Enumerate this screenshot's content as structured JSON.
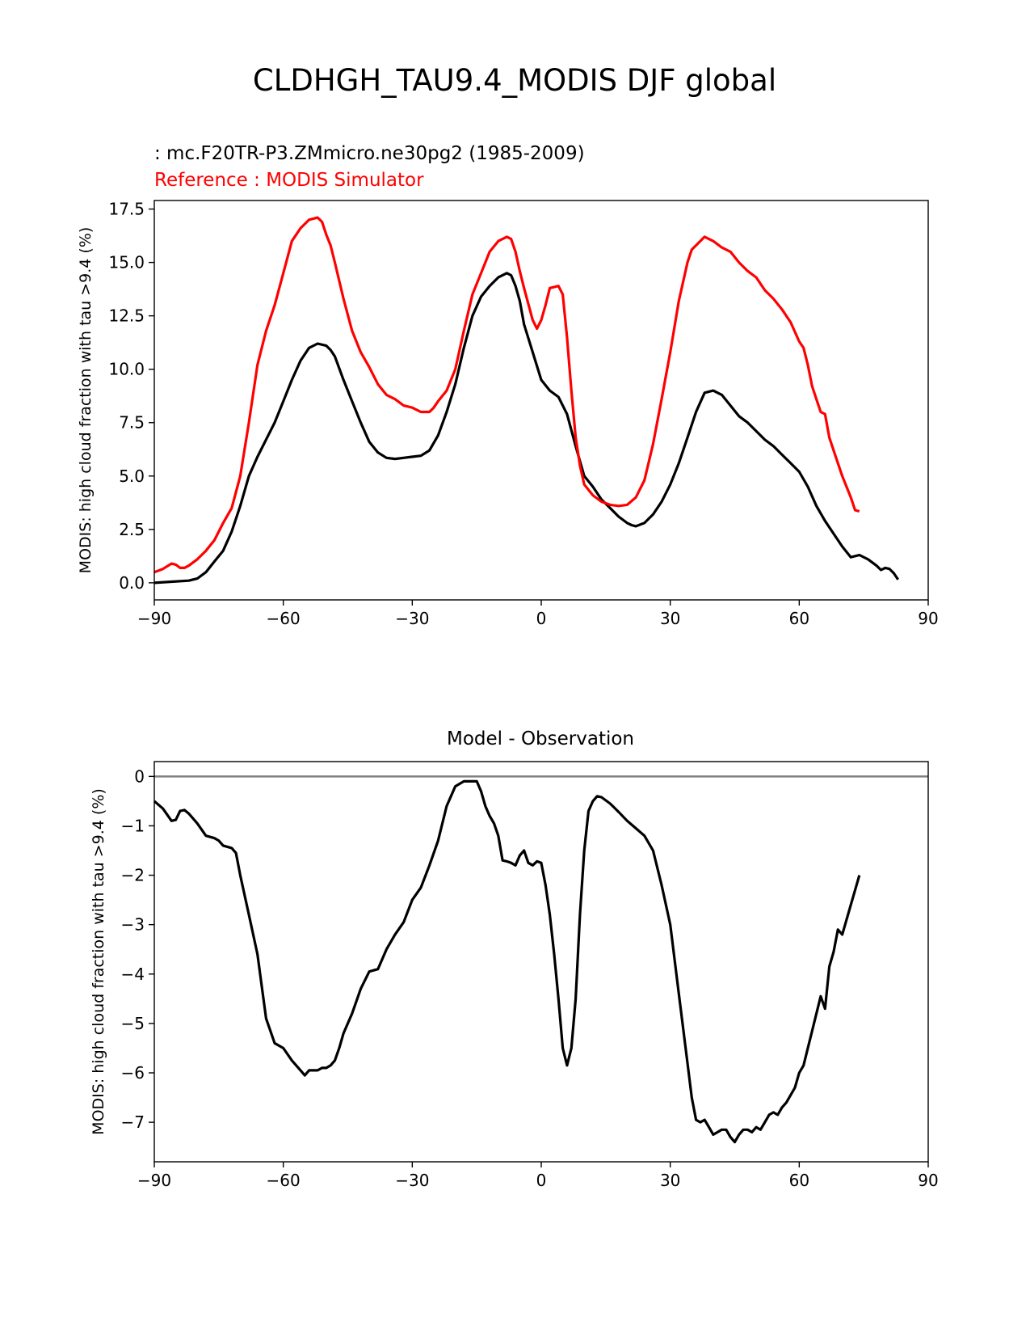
{
  "figure": {
    "title": "CLDHGH_TAU9.4_MODIS DJF global"
  },
  "chart_data": [
    {
      "type": "line",
      "test_label": " : mc.F20TR-P3.ZMmicro.ne30pg2 (1985-2009)",
      "ref_label": "Reference : MODIS Simulator",
      "ylabel": "MODIS: high cloud fraction with tau >9.4 (%)",
      "xlim": [
        -90,
        90
      ],
      "ylim": [
        -0.8,
        17.9
      ],
      "xticks": [
        -90,
        -60,
        -30,
        0,
        30,
        60,
        90
      ],
      "xtick_labels": [
        "−90",
        "−60",
        "−30",
        "0",
        "30",
        "60",
        "90"
      ],
      "yticks": [
        0,
        2.5,
        5,
        7.5,
        10,
        12.5,
        15,
        17.5
      ],
      "ytick_labels": [
        "0.0",
        "2.5",
        "5.0",
        "7.5",
        "10.0",
        "12.5",
        "15.0",
        "17.5"
      ],
      "series": [
        {
          "role": "test",
          "color": "#000000",
          "x": [
            -90,
            -86,
            -82,
            -80,
            -78,
            -76,
            -74,
            -72,
            -70,
            -68,
            -66,
            -62,
            -60,
            -58,
            -56,
            -54,
            -52,
            -50,
            -49,
            -48,
            -46,
            -44,
            -42,
            -40,
            -38,
            -36,
            -34,
            -32,
            -30,
            -28,
            -26,
            -24,
            -22,
            -20,
            -18,
            -16,
            -14,
            -12,
            -10,
            -8,
            -7,
            -6,
            -5,
            -4,
            -2,
            0,
            2,
            4,
            6,
            8,
            10,
            12,
            14,
            16,
            18,
            20,
            21,
            22,
            24,
            26,
            28,
            30,
            32,
            34,
            36,
            38,
            40,
            42,
            44,
            46,
            48,
            50,
            52,
            54,
            56,
            58,
            60,
            62,
            64,
            66,
            68,
            70,
            72,
            74,
            76,
            78,
            79,
            80,
            81,
            82,
            83
          ],
          "y": [
            0.0,
            0.05,
            0.1,
            0.2,
            0.5,
            1.0,
            1.5,
            2.4,
            3.6,
            5.0,
            5.9,
            7.5,
            8.5,
            9.5,
            10.4,
            11.0,
            11.2,
            11.1,
            10.9,
            10.6,
            9.5,
            8.5,
            7.5,
            6.6,
            6.1,
            5.85,
            5.8,
            5.85,
            5.9,
            5.95,
            6.2,
            6.9,
            8.0,
            9.3,
            11.0,
            12.5,
            13.4,
            13.9,
            14.3,
            14.5,
            14.4,
            13.9,
            13.2,
            12.1,
            10.8,
            9.5,
            9.0,
            8.7,
            7.9,
            6.4,
            5.0,
            4.5,
            3.9,
            3.5,
            3.1,
            2.8,
            2.7,
            2.65,
            2.8,
            3.2,
            3.8,
            4.6,
            5.6,
            6.8,
            8.0,
            8.9,
            9.0,
            8.8,
            8.3,
            7.8,
            7.5,
            7.1,
            6.7,
            6.4,
            6.0,
            5.6,
            5.2,
            4.5,
            3.6,
            2.9,
            2.3,
            1.7,
            1.2,
            1.3,
            1.1,
            0.8,
            0.6,
            0.7,
            0.65,
            0.45,
            0.15
          ]
        },
        {
          "role": "reference",
          "color": "#ff0000",
          "x": [
            -90,
            -88,
            -86,
            -85,
            -84,
            -83,
            -82,
            -80,
            -78,
            -76,
            -75,
            -74,
            -72,
            -70,
            -68,
            -66,
            -64,
            -62,
            -60,
            -58,
            -56,
            -54,
            -52,
            -51,
            -50,
            -49,
            -48,
            -46,
            -44,
            -42,
            -40,
            -38,
            -36,
            -34,
            -32,
            -30,
            -28,
            -26,
            -25,
            -24,
            -22,
            -20,
            -18,
            -16,
            -14,
            -12,
            -10,
            -8,
            -7,
            -6,
            -5,
            -4,
            -2,
            -1,
            0,
            1,
            2,
            4,
            5,
            6,
            7,
            8,
            9,
            10,
            12,
            14,
            16,
            18,
            20,
            22,
            24,
            26,
            28,
            30,
            32,
            34,
            35,
            36,
            38,
            40,
            42,
            44,
            46,
            48,
            50,
            52,
            54,
            56,
            58,
            60,
            61,
            62,
            63,
            64,
            65,
            66,
            67,
            68,
            69,
            70,
            71,
            72,
            73,
            74
          ],
          "y": [
            0.5,
            0.65,
            0.9,
            0.85,
            0.7,
            0.7,
            0.8,
            1.1,
            1.5,
            2.0,
            2.4,
            2.8,
            3.5,
            5.0,
            7.5,
            10.2,
            11.8,
            13.0,
            14.5,
            16.0,
            16.6,
            17.0,
            17.1,
            16.9,
            16.3,
            15.8,
            15.0,
            13.3,
            11.8,
            10.8,
            10.1,
            9.3,
            8.8,
            8.6,
            8.3,
            8.2,
            8.0,
            8.0,
            8.2,
            8.5,
            9.0,
            10.0,
            11.8,
            13.5,
            14.5,
            15.5,
            16.0,
            16.2,
            16.1,
            15.5,
            14.6,
            13.8,
            12.3,
            11.9,
            12.3,
            13.0,
            13.8,
            13.9,
            13.5,
            11.5,
            9.0,
            6.8,
            5.5,
            4.6,
            4.1,
            3.8,
            3.65,
            3.6,
            3.65,
            4.0,
            4.8,
            6.5,
            8.6,
            10.8,
            13.2,
            15.0,
            15.6,
            15.8,
            16.2,
            16.0,
            15.7,
            15.5,
            15.0,
            14.6,
            14.3,
            13.7,
            13.3,
            12.8,
            12.2,
            11.3,
            11.0,
            10.2,
            9.2,
            8.6,
            8.0,
            7.9,
            6.8,
            6.2,
            5.6,
            5.0,
            4.5,
            4.0,
            3.4,
            3.35
          ]
        }
      ]
    },
    {
      "type": "line",
      "title": "Model - Observation",
      "ylabel": "MODIS: high cloud fraction with tau >9.4 (%)",
      "xlim": [
        -90,
        90
      ],
      "ylim": [
        -7.8,
        0.3
      ],
      "xticks": [
        -90,
        -60,
        -30,
        0,
        30,
        60,
        90
      ],
      "xtick_labels": [
        "−90",
        "−60",
        "−30",
        "0",
        "30",
        "60",
        "90"
      ],
      "yticks": [
        0,
        -1,
        -2,
        -3,
        -4,
        -5,
        -6,
        -7
      ],
      "ytick_labels": [
        "0",
        "−1",
        "−2",
        "−3",
        "−4",
        "−5",
        "−6",
        "−7"
      ],
      "zero_line_color": "#808080",
      "series": [
        {
          "role": "difference",
          "color": "#000000",
          "x": [
            -90,
            -88,
            -86,
            -85,
            -84,
            -83,
            -82,
            -80,
            -78,
            -76,
            -75,
            -74,
            -72,
            -71,
            -70,
            -68,
            -66,
            -64,
            -62,
            -60,
            -58,
            -56,
            -55,
            -54,
            -53,
            -52,
            -51,
            -50,
            -49,
            -48,
            -47,
            -46,
            -44,
            -42,
            -40,
            -38,
            -36,
            -34,
            -32,
            -30,
            -28,
            -26,
            -24,
            -22,
            -20,
            -18,
            -16,
            -15,
            -14,
            -13,
            -12,
            -11,
            -10,
            -9,
            -8,
            -7,
            -6,
            -5,
            -4,
            -3,
            -2,
            -1,
            0,
            1,
            2,
            3,
            4,
            5,
            6,
            7,
            8,
            9,
            10,
            11,
            12,
            13,
            14,
            16,
            18,
            20,
            22,
            24,
            26,
            28,
            30,
            32,
            34,
            35,
            36,
            37,
            38,
            39,
            40,
            42,
            43,
            44,
            45,
            46,
            47,
            48,
            49,
            50,
            51,
            52,
            53,
            54,
            55,
            56,
            57,
            58,
            59,
            60,
            61,
            62,
            63,
            64,
            65,
            66,
            67,
            68,
            69,
            70,
            71,
            72,
            73,
            74
          ],
          "y": [
            -0.5,
            -0.65,
            -0.9,
            -0.88,
            -0.7,
            -0.68,
            -0.75,
            -0.95,
            -1.2,
            -1.25,
            -1.3,
            -1.4,
            -1.45,
            -1.55,
            -2.0,
            -2.8,
            -3.6,
            -4.9,
            -5.4,
            -5.5,
            -5.75,
            -5.95,
            -6.05,
            -5.95,
            -5.95,
            -5.95,
            -5.9,
            -5.9,
            -5.85,
            -5.75,
            -5.5,
            -5.2,
            -4.8,
            -4.3,
            -3.95,
            -3.9,
            -3.5,
            -3.2,
            -2.95,
            -2.5,
            -2.25,
            -1.8,
            -1.3,
            -0.6,
            -0.2,
            -0.1,
            -0.1,
            -0.1,
            -0.3,
            -0.6,
            -0.8,
            -0.95,
            -1.2,
            -1.7,
            -1.72,
            -1.75,
            -1.8,
            -1.6,
            -1.5,
            -1.75,
            -1.8,
            -1.72,
            -1.75,
            -2.2,
            -2.8,
            -3.6,
            -4.5,
            -5.5,
            -5.85,
            -5.5,
            -4.5,
            -2.8,
            -1.5,
            -0.7,
            -0.5,
            -0.4,
            -0.42,
            -0.55,
            -0.72,
            -0.9,
            -1.05,
            -1.2,
            -1.5,
            -2.2,
            -3.0,
            -4.4,
            -5.8,
            -6.5,
            -6.95,
            -7.0,
            -6.95,
            -7.1,
            -7.25,
            -7.15,
            -7.15,
            -7.3,
            -7.4,
            -7.25,
            -7.15,
            -7.15,
            -7.2,
            -7.1,
            -7.15,
            -7.0,
            -6.85,
            -6.8,
            -6.85,
            -6.7,
            -6.6,
            -6.45,
            -6.3,
            -6.0,
            -5.85,
            -5.5,
            -5.15,
            -4.8,
            -4.45,
            -4.7,
            -3.85,
            -3.55,
            -3.1,
            -3.2,
            -2.9,
            -2.6,
            -2.3,
            -2.0
          ]
        }
      ]
    }
  ]
}
